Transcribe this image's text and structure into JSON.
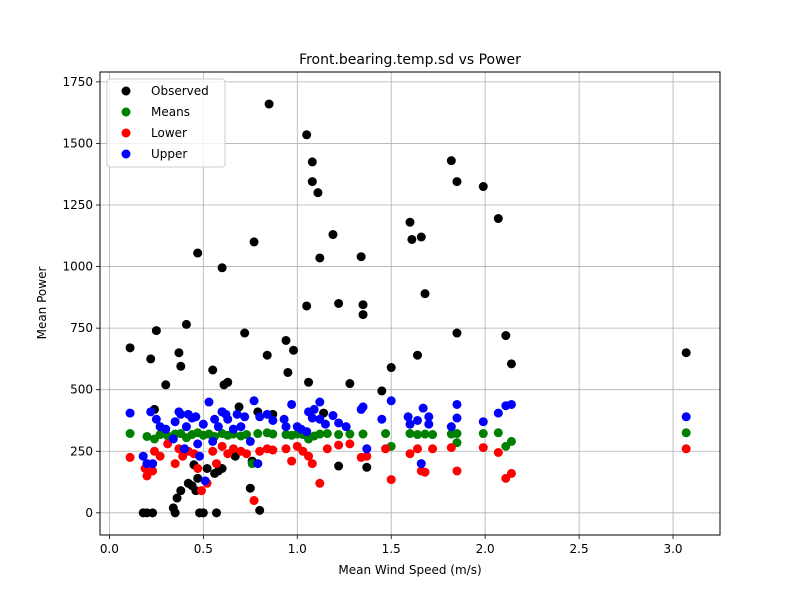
{
  "chart_data": {
    "type": "scatter",
    "title": "Front.bearing.temp.sd vs Power",
    "xlabel": "Mean Wind Speed (m/s)",
    "ylabel": "Mean Power",
    "xlim": [
      -0.05,
      3.25
    ],
    "ylim": [
      -90,
      1790
    ],
    "x_ticks": [
      0.0,
      0.5,
      1.0,
      1.5,
      2.0,
      2.5,
      3.0
    ],
    "x_tick_labels": [
      "0.0",
      "0.5",
      "1.0",
      "1.5",
      "2.0",
      "2.5",
      "3.0"
    ],
    "y_ticks": [
      0,
      250,
      500,
      750,
      1000,
      1250,
      1500,
      1750
    ],
    "y_tick_labels": [
      "0",
      "250",
      "500",
      "750",
      "1000",
      "1250",
      "1500",
      "1750"
    ],
    "grid": true,
    "legend_position": "top-left",
    "series": [
      {
        "name": "Observed",
        "color": "#000000",
        "points": [
          [
            0.11,
            670
          ],
          [
            0.18,
            0
          ],
          [
            0.2,
            0
          ],
          [
            0.23,
            0
          ],
          [
            0.22,
            625
          ],
          [
            0.25,
            740
          ],
          [
            0.24,
            420
          ],
          [
            0.3,
            520
          ],
          [
            0.34,
            20
          ],
          [
            0.35,
            0
          ],
          [
            0.36,
            60
          ],
          [
            0.38,
            90
          ],
          [
            0.37,
            650
          ],
          [
            0.38,
            595
          ],
          [
            0.41,
            765
          ],
          [
            0.42,
            120
          ],
          [
            0.44,
            110
          ],
          [
            0.45,
            195
          ],
          [
            0.46,
            90
          ],
          [
            0.47,
            140
          ],
          [
            0.47,
            1055
          ],
          [
            0.48,
            0
          ],
          [
            0.5,
            0
          ],
          [
            0.52,
            180
          ],
          [
            0.55,
            580
          ],
          [
            0.57,
            0
          ],
          [
            0.56,
            160
          ],
          [
            0.58,
            170
          ],
          [
            0.6,
            180
          ],
          [
            0.6,
            410
          ],
          [
            0.6,
            995
          ],
          [
            0.61,
            520
          ],
          [
            0.63,
            530
          ],
          [
            0.67,
            230
          ],
          [
            0.69,
            430
          ],
          [
            0.72,
            730
          ],
          [
            0.75,
            100
          ],
          [
            0.77,
            1100
          ],
          [
            0.76,
            210
          ],
          [
            0.79,
            410
          ],
          [
            0.8,
            10
          ],
          [
            0.84,
            640
          ],
          [
            0.85,
            1660
          ],
          [
            0.87,
            400
          ],
          [
            0.94,
            700
          ],
          [
            0.95,
            570
          ],
          [
            0.98,
            660
          ],
          [
            1.05,
            1535
          ],
          [
            1.05,
            840
          ],
          [
            1.06,
            530
          ],
          [
            1.08,
            1425
          ],
          [
            1.08,
            1345
          ],
          [
            1.11,
            1300
          ],
          [
            1.12,
            1035
          ],
          [
            1.14,
            405
          ],
          [
            1.19,
            1130
          ],
          [
            1.22,
            850
          ],
          [
            1.22,
            190
          ],
          [
            1.28,
            525
          ],
          [
            1.34,
            1040
          ],
          [
            1.35,
            845
          ],
          [
            1.35,
            805
          ],
          [
            1.37,
            185
          ],
          [
            1.45,
            495
          ],
          [
            1.5,
            590
          ],
          [
            1.6,
            1180
          ],
          [
            1.61,
            1110
          ],
          [
            1.64,
            640
          ],
          [
            1.66,
            1120
          ],
          [
            1.68,
            890
          ],
          [
            1.82,
            1430
          ],
          [
            1.85,
            1345
          ],
          [
            1.85,
            730
          ],
          [
            1.99,
            1325
          ],
          [
            2.07,
            1195
          ],
          [
            2.11,
            720
          ],
          [
            2.14,
            605
          ],
          [
            3.07,
            650
          ]
        ]
      },
      {
        "name": "Means",
        "color": "#008000",
        "points": [
          [
            0.11,
            322
          ],
          [
            0.2,
            310
          ],
          [
            0.24,
            300
          ],
          [
            0.27,
            318
          ],
          [
            0.31,
            312
          ],
          [
            0.35,
            320
          ],
          [
            0.38,
            322
          ],
          [
            0.41,
            305
          ],
          [
            0.44,
            318
          ],
          [
            0.47,
            325
          ],
          [
            0.5,
            315
          ],
          [
            0.53,
            320
          ],
          [
            0.56,
            310
          ],
          [
            0.6,
            322
          ],
          [
            0.63,
            315
          ],
          [
            0.66,
            320
          ],
          [
            0.7,
            312
          ],
          [
            0.73,
            318
          ],
          [
            0.76,
            200
          ],
          [
            0.79,
            322
          ],
          [
            0.84,
            325
          ],
          [
            0.87,
            320
          ],
          [
            0.94,
            318
          ],
          [
            0.97,
            315
          ],
          [
            1.0,
            320
          ],
          [
            1.03,
            318
          ],
          [
            1.06,
            300
          ],
          [
            1.09,
            312
          ],
          [
            1.12,
            320
          ],
          [
            1.16,
            322
          ],
          [
            1.22,
            318
          ],
          [
            1.28,
            320
          ],
          [
            1.35,
            320
          ],
          [
            1.47,
            322
          ],
          [
            1.5,
            270
          ],
          [
            1.6,
            322
          ],
          [
            1.64,
            318
          ],
          [
            1.68,
            320
          ],
          [
            1.72,
            318
          ],
          [
            1.82,
            320
          ],
          [
            1.85,
            322
          ],
          [
            1.85,
            285
          ],
          [
            1.99,
            322
          ],
          [
            2.07,
            325
          ],
          [
            2.11,
            270
          ],
          [
            2.14,
            290
          ],
          [
            3.07,
            325
          ]
        ]
      },
      {
        "name": "Lower",
        "color": "#ff0000",
        "points": [
          [
            0.11,
            225
          ],
          [
            0.19,
            180
          ],
          [
            0.2,
            150
          ],
          [
            0.23,
            170
          ],
          [
            0.24,
            250
          ],
          [
            0.27,
            230
          ],
          [
            0.31,
            280
          ],
          [
            0.35,
            200
          ],
          [
            0.37,
            260
          ],
          [
            0.39,
            230
          ],
          [
            0.42,
            250
          ],
          [
            0.45,
            240
          ],
          [
            0.47,
            180
          ],
          [
            0.49,
            90
          ],
          [
            0.52,
            120
          ],
          [
            0.55,
            250
          ],
          [
            0.57,
            200
          ],
          [
            0.6,
            270
          ],
          [
            0.63,
            240
          ],
          [
            0.66,
            260
          ],
          [
            0.7,
            250
          ],
          [
            0.73,
            240
          ],
          [
            0.77,
            50
          ],
          [
            0.8,
            250
          ],
          [
            0.84,
            260
          ],
          [
            0.87,
            255
          ],
          [
            0.94,
            260
          ],
          [
            0.97,
            210
          ],
          [
            1.0,
            270
          ],
          [
            1.03,
            250
          ],
          [
            1.06,
            230
          ],
          [
            1.08,
            200
          ],
          [
            1.12,
            120
          ],
          [
            1.16,
            260
          ],
          [
            1.22,
            275
          ],
          [
            1.28,
            280
          ],
          [
            1.34,
            225
          ],
          [
            1.37,
            230
          ],
          [
            1.47,
            260
          ],
          [
            1.5,
            135
          ],
          [
            1.6,
            240
          ],
          [
            1.64,
            260
          ],
          [
            1.66,
            170
          ],
          [
            1.68,
            165
          ],
          [
            1.72,
            260
          ],
          [
            1.82,
            265
          ],
          [
            1.85,
            170
          ],
          [
            1.99,
            265
          ],
          [
            2.07,
            245
          ],
          [
            2.11,
            140
          ],
          [
            2.14,
            160
          ],
          [
            3.07,
            260
          ]
        ]
      },
      {
        "name": "Upper",
        "color": "#0000ff",
        "points": [
          [
            0.11,
            405
          ],
          [
            0.18,
            230
          ],
          [
            0.2,
            200
          ],
          [
            0.22,
            410
          ],
          [
            0.23,
            200
          ],
          [
            0.25,
            380
          ],
          [
            0.27,
            350
          ],
          [
            0.3,
            340
          ],
          [
            0.34,
            300
          ],
          [
            0.35,
            370
          ],
          [
            0.37,
            410
          ],
          [
            0.38,
            400
          ],
          [
            0.4,
            260
          ],
          [
            0.41,
            350
          ],
          [
            0.42,
            400
          ],
          [
            0.44,
            385
          ],
          [
            0.46,
            390
          ],
          [
            0.47,
            280
          ],
          [
            0.48,
            230
          ],
          [
            0.5,
            360
          ],
          [
            0.51,
            130
          ],
          [
            0.53,
            450
          ],
          [
            0.55,
            290
          ],
          [
            0.56,
            380
          ],
          [
            0.58,
            350
          ],
          [
            0.6,
            410
          ],
          [
            0.62,
            400
          ],
          [
            0.63,
            380
          ],
          [
            0.66,
            340
          ],
          [
            0.68,
            400
          ],
          [
            0.7,
            350
          ],
          [
            0.72,
            390
          ],
          [
            0.75,
            290
          ],
          [
            0.77,
            455
          ],
          [
            0.79,
            200
          ],
          [
            0.8,
            390
          ],
          [
            0.84,
            400
          ],
          [
            0.87,
            375
          ],
          [
            0.93,
            380
          ],
          [
            0.94,
            350
          ],
          [
            0.97,
            440
          ],
          [
            1.0,
            350
          ],
          [
            1.02,
            340
          ],
          [
            1.05,
            330
          ],
          [
            1.06,
            410
          ],
          [
            1.08,
            385
          ],
          [
            1.09,
            420
          ],
          [
            1.12,
            450
          ],
          [
            1.12,
            380
          ],
          [
            1.15,
            360
          ],
          [
            1.19,
            395
          ],
          [
            1.22,
            365
          ],
          [
            1.26,
            350
          ],
          [
            1.34,
            420
          ],
          [
            1.35,
            430
          ],
          [
            1.37,
            260
          ],
          [
            1.45,
            380
          ],
          [
            1.5,
            455
          ],
          [
            1.59,
            390
          ],
          [
            1.6,
            360
          ],
          [
            1.64,
            375
          ],
          [
            1.66,
            200
          ],
          [
            1.67,
            425
          ],
          [
            1.7,
            390
          ],
          [
            1.7,
            360
          ],
          [
            1.82,
            350
          ],
          [
            1.85,
            440
          ],
          [
            1.85,
            385
          ],
          [
            1.99,
            370
          ],
          [
            2.07,
            405
          ],
          [
            2.11,
            435
          ],
          [
            2.14,
            440
          ],
          [
            3.07,
            390
          ]
        ]
      }
    ]
  }
}
